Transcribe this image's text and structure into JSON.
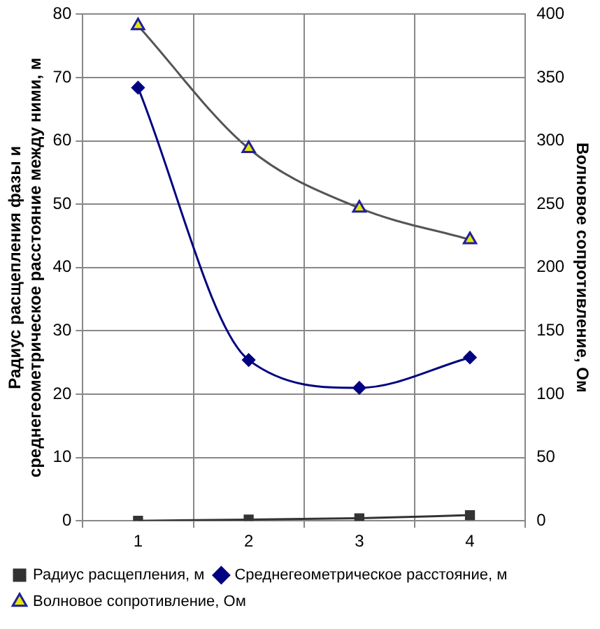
{
  "chart_data": {
    "type": "line",
    "categories": [
      "1",
      "2",
      "3",
      "4"
    ],
    "ylabel": "Радиус расщепления фазы и среднегеометрическое расстояние между ними, м",
    "y2label": "Волновое сопротивление, Ом",
    "ylim": [
      0,
      80
    ],
    "yticks": [
      0,
      10,
      20,
      30,
      40,
      50,
      60,
      70,
      80
    ],
    "y2lim": [
      0,
      400
    ],
    "y2ticks": [
      0,
      50,
      100,
      150,
      200,
      250,
      300,
      350,
      400
    ],
    "grid": true,
    "legend": "bottom",
    "series": [
      {
        "name": "Радиус расщепления, м",
        "color": "#333333",
        "marker": "square",
        "values": [
          0,
          0.2,
          0.4,
          0.9
        ]
      },
      {
        "name": "Среднегеометрическое расстояние, м",
        "color": "#000080",
        "marker": "diamond",
        "values": [
          68.4,
          25.4,
          21,
          25.8
        ]
      },
      {
        "name": "Волновое сопротивление, Ом",
        "color": "#e6e600",
        "marker": "triangle",
        "axis": "y2",
        "values": [
          391,
          294,
          247,
          222
        ]
      }
    ]
  }
}
